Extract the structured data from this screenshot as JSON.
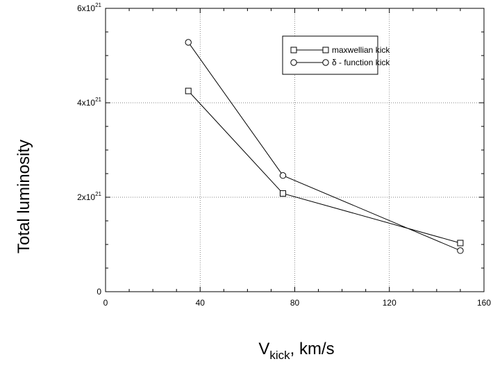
{
  "chart_data": {
    "type": "line",
    "title": "",
    "xlabel": {
      "main": "V",
      "sub": "kick",
      "rest": ", km/s"
    },
    "ylabel": "Total luminosity",
    "xlim": [
      0,
      160
    ],
    "ylim": [
      0,
      6e+21
    ],
    "xticks": [
      {
        "value": 0,
        "label": "0"
      },
      {
        "value": 40,
        "label": "40"
      },
      {
        "value": 80,
        "label": "80"
      },
      {
        "value": 120,
        "label": "120"
      },
      {
        "value": 160,
        "label": "160"
      }
    ],
    "yticks": [
      {
        "value": 0,
        "label": "0",
        "exp": ""
      },
      {
        "value": 2e+21,
        "label": "2x10",
        "exp": "21"
      },
      {
        "value": 4e+21,
        "label": "4x10",
        "exp": "21"
      },
      {
        "value": 6e+21,
        "label": "6x10",
        "exp": "21"
      }
    ],
    "grid": true,
    "legend_position": "top-right",
    "series": [
      {
        "name": "maxwellian kick",
        "marker": "square",
        "color": "#000000",
        "x": [
          35,
          75,
          150
        ],
        "y": [
          4.25e+21,
          2.08e+21,
          1.03e+21
        ]
      },
      {
        "name": "δ - function kick",
        "marker": "circle",
        "color": "#000000",
        "x": [
          35,
          75,
          150
        ],
        "y": [
          5.28e+21,
          2.46e+21,
          8.7e+20
        ]
      }
    ]
  }
}
